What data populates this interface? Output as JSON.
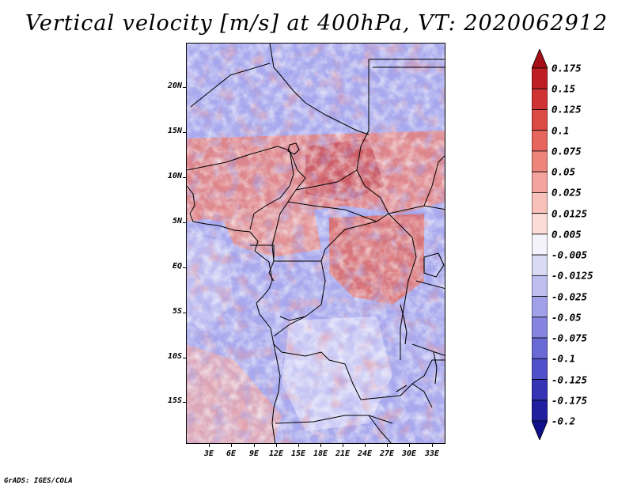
{
  "title": "Vertical velocity [m/s] at 400hPa, VT: 2020062912",
  "credit": "GrADS: IGES/COLA",
  "map": {
    "lat_labels": [
      "20N",
      "15N",
      "10N",
      "5N",
      "EQ",
      "5S",
      "10S",
      "15S"
    ],
    "lon_labels": [
      "3E",
      "6E",
      "9E",
      "12E",
      "15E",
      "18E",
      "21E",
      "24E",
      "27E",
      "30E",
      "33E"
    ],
    "field": "vertical-velocity-shading",
    "features": [
      "coastline",
      "country-borders",
      "lakes"
    ]
  },
  "colorbar": {
    "labels": [
      "0.175",
      "0.15",
      "0.125",
      "0.1",
      "0.075",
      "0.05",
      "0.025",
      "0.0125",
      "0.005",
      "-0.005",
      "-0.0125",
      "-0.025",
      "-0.05",
      "-0.075",
      "-0.1",
      "-0.125",
      "-0.175",
      "-0.2"
    ],
    "colors": [
      "#a50f15",
      "#bf1f23",
      "#cf3333",
      "#dc4a45",
      "#e6665e",
      "#ee857c",
      "#f4a49c",
      "#f8c2bb",
      "#fbdcd7",
      "#f4f3fb",
      "#dadaf5",
      "#bebef0",
      "#a1a1e8",
      "#8585df",
      "#6a6ad6",
      "#5050ca",
      "#3434b5",
      "#1f1fa0",
      "#10108a"
    ]
  }
}
